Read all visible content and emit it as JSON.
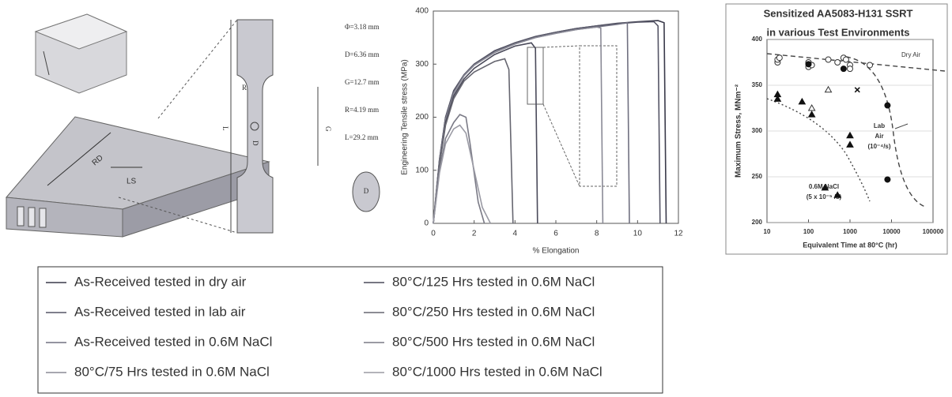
{
  "diagram": {
    "dimensions": [
      "Φ=3.18 mm",
      "D=6.36 mm",
      "G=12.7 mm",
      "R=4.19 mm",
      "L=29.2 mm"
    ],
    "labels": {
      "rd": "RD",
      "ls": "LS",
      "l": "L",
      "g": "G",
      "r": "R",
      "d": "D",
      "section_d": "D"
    }
  },
  "chart_data": [
    {
      "type": "line",
      "xlabel": "% Elongation",
      "ylabel": "Engineering Tensile stress (MPa)",
      "xlim": [
        0,
        12
      ],
      "xticks": [
        0,
        2,
        4,
        6,
        8,
        10,
        12
      ],
      "ylim": [
        0,
        400
      ],
      "yticks": [
        0,
        100,
        200,
        300,
        400
      ],
      "series": [
        {
          "name": "As-Received tested in dry air",
          "color": "#3a3a4a",
          "x": [
            0,
            0.3,
            0.6,
            1,
            1.5,
            2,
            3,
            4,
            5,
            6,
            7,
            8,
            9,
            10,
            11,
            11.3,
            11.4
          ],
          "values": [
            0,
            120,
            200,
            250,
            280,
            300,
            325,
            340,
            352,
            360,
            367,
            372,
            377,
            380,
            382,
            378,
            0
          ]
        },
        {
          "name": "As-Received tested in lab air",
          "color": "#555566",
          "x": [
            0,
            0.3,
            0.6,
            1,
            1.5,
            2,
            3,
            4,
            5,
            6,
            7,
            8,
            9,
            10,
            10.8,
            11.0,
            11.1
          ],
          "values": [
            0,
            120,
            200,
            250,
            280,
            300,
            325,
            340,
            352,
            360,
            367,
            372,
            376,
            379,
            380,
            372,
            0
          ]
        },
        {
          "name": "As-Received tested in 0.6M NaCl",
          "color": "#707080",
          "x": [
            0,
            0.3,
            0.6,
            1,
            1.5,
            2,
            3,
            4,
            5,
            6,
            7,
            8,
            9,
            9.5,
            9.6
          ],
          "values": [
            0,
            115,
            195,
            245,
            278,
            298,
            322,
            338,
            350,
            358,
            365,
            370,
            375,
            378,
            0
          ]
        },
        {
          "name": "80°C/75 Hrs tested in 0.6M NaCl",
          "color": "#8a8a96",
          "x": [
            0,
            0.3,
            0.6,
            1,
            1.5,
            2,
            3,
            4,
            5,
            6,
            7,
            8,
            8.2,
            8.3
          ],
          "values": [
            0,
            115,
            195,
            245,
            278,
            298,
            322,
            338,
            350,
            358,
            365,
            370,
            368,
            0
          ]
        },
        {
          "name": "80°C/125 Hrs tested in 0.6M NaCl",
          "color": "#4a4a5a",
          "x": [
            0,
            0.3,
            0.6,
            1,
            1.5,
            2,
            3,
            4,
            4.8,
            5.0,
            5.1
          ],
          "values": [
            0,
            110,
            190,
            240,
            272,
            292,
            318,
            334,
            340,
            330,
            0
          ]
        },
        {
          "name": "80°C/250 Hrs tested in 0.6M NaCl",
          "color": "#666670",
          "x": [
            0,
            0.3,
            0.6,
            1,
            1.5,
            2,
            3,
            3.5,
            3.7,
            3.9
          ],
          "values": [
            0,
            110,
            185,
            235,
            268,
            285,
            305,
            310,
            290,
            0
          ]
        },
        {
          "name": "80°C/500 Hrs tested in 0.6M NaCl",
          "color": "#7a7a86",
          "x": [
            0,
            0.3,
            0.6,
            1,
            1.3,
            1.6,
            1.8,
            2.2,
            2.5
          ],
          "values": [
            0,
            100,
            160,
            190,
            205,
            200,
            150,
            40,
            0
          ]
        },
        {
          "name": "80°C/1000 Hrs tested in 0.6M NaCl",
          "color": "#9a9aa4",
          "x": [
            0,
            0.3,
            0.6,
            1,
            1.3,
            1.6,
            2,
            2.4,
            2.8
          ],
          "values": [
            0,
            95,
            150,
            178,
            185,
            170,
            100,
            30,
            0
          ]
        }
      ]
    },
    {
      "type": "scatter",
      "title": [
        "Sensitized AA5083-H131 SSRT",
        "in various Test Environments"
      ],
      "xlabel": "Equivalent Time at 80°C (hr)",
      "ylabel": "Maximum Stress, MNm⁻²",
      "xscale": "log",
      "xlim": [
        10,
        100000
      ],
      "xticks": [
        10,
        100,
        1000,
        10000,
        100000
      ],
      "ylim": [
        200,
        400
      ],
      "yticks": [
        200,
        250,
        300,
        350,
        400
      ],
      "annotations": {
        "dry_air": "Dry Air",
        "lab_air": [
          "Lab",
          "Air",
          "(10⁻⁴/s)"
        ],
        "nacl": [
          "0.6M NaCl",
          "(5 x 10⁻⁵ /s)"
        ]
      },
      "series": [
        {
          "marker": "open-circle",
          "color": "#333333",
          "x": [
            18,
            18,
            20,
            100,
            100,
            120,
            300,
            500,
            700,
            800,
            1000,
            3000,
            1000
          ],
          "values": [
            375,
            378,
            380,
            375,
            370,
            372,
            378,
            375,
            380,
            378,
            372,
            372,
            368
          ]
        },
        {
          "marker": "filled-circle",
          "color": "#111111",
          "x": [
            100,
            700,
            8000,
            8000
          ],
          "values": [
            373,
            368,
            328,
            247
          ]
        },
        {
          "marker": "cross",
          "color": "#111111",
          "x": [
            1500
          ],
          "values": [
            345
          ]
        },
        {
          "marker": "filled-triangle",
          "color": "#111111",
          "x": [
            18,
            18,
            70,
            120,
            250,
            500,
            1000,
            1000
          ],
          "values": [
            340,
            335,
            332,
            318,
            238,
            230,
            295,
            285
          ]
        },
        {
          "marker": "open-triangle",
          "color": "#333333",
          "x": [
            120,
            300
          ],
          "values": [
            325,
            345
          ]
        }
      ]
    }
  ]
}
